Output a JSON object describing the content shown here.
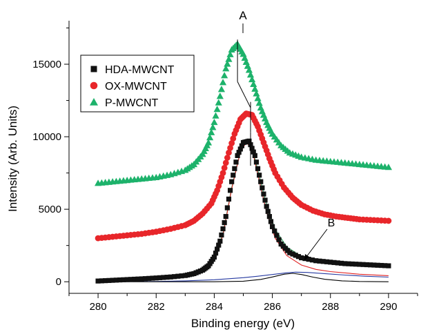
{
  "chart_data": {
    "type": "scatter",
    "xlabel": "Binding energy (eV)",
    "ylabel": "Intensity (Arb. Units)",
    "xlim": [
      279,
      291
    ],
    "ylim": [
      -800,
      18000
    ],
    "xticks": [
      280,
      282,
      284,
      286,
      288,
      290
    ],
    "yticks": [
      0,
      5000,
      10000,
      15000
    ],
    "grid": false,
    "legend_position": "top-left",
    "annotations": [
      {
        "label": "A",
        "text": "A"
      },
      {
        "label": "B",
        "text": "B"
      }
    ],
    "series": [
      {
        "name": "HDA-MWCNT",
        "marker": "square",
        "color": "#111111",
        "x": [
          280.0,
          280.5,
          281.0,
          281.5,
          282.0,
          282.5,
          283.0,
          283.3,
          283.6,
          283.8,
          284.0,
          284.2,
          284.4,
          284.6,
          284.8,
          285.0,
          285.2,
          285.4,
          285.6,
          285.8,
          286.0,
          286.3,
          286.6,
          287.0,
          287.5,
          288.0,
          288.5,
          289.0,
          289.5,
          290.0
        ],
        "y": [
          50,
          100,
          150,
          200,
          260,
          330,
          430,
          560,
          800,
          1100,
          1700,
          2800,
          4500,
          6900,
          8700,
          9600,
          9700,
          8700,
          6900,
          5200,
          3800,
          2600,
          2000,
          1650,
          1450,
          1350,
          1250,
          1200,
          1150,
          1100
        ]
      },
      {
        "name": "OX-MWCNT",
        "marker": "circle",
        "color": "#e8262a",
        "x": [
          280.0,
          280.5,
          281.0,
          281.5,
          282.0,
          282.5,
          283.0,
          283.3,
          283.6,
          283.9,
          284.1,
          284.3,
          284.5,
          284.7,
          284.9,
          285.1,
          285.3,
          285.5,
          285.7,
          285.9,
          286.1,
          286.4,
          286.7,
          287.0,
          287.4,
          287.8,
          288.2,
          288.6,
          289.0,
          289.5,
          290.0
        ],
        "y": [
          3000,
          3100,
          3200,
          3300,
          3450,
          3650,
          3900,
          4200,
          4700,
          5400,
          6300,
          7500,
          8900,
          10200,
          11200,
          11600,
          11500,
          10700,
          9600,
          8500,
          7500,
          6500,
          5800,
          5300,
          4900,
          4650,
          4500,
          4400,
          4300,
          4250,
          4200
        ]
      },
      {
        "name": "P-MWCNT",
        "marker": "triangle",
        "color": "#1db26b",
        "x": [
          280.0,
          280.5,
          281.0,
          281.5,
          282.0,
          282.5,
          283.0,
          283.3,
          283.6,
          283.8,
          284.0,
          284.2,
          284.4,
          284.6,
          284.8,
          285.0,
          285.2,
          285.4,
          285.6,
          285.8,
          286.0,
          286.3,
          286.6,
          287.0,
          287.5,
          288.0,
          288.5,
          289.0,
          289.5,
          290.0
        ],
        "y": [
          6800,
          6900,
          7000,
          7100,
          7200,
          7400,
          7700,
          8100,
          8800,
          9600,
          11000,
          12800,
          14700,
          16000,
          16400,
          15700,
          14600,
          13300,
          12000,
          11000,
          10200,
          9400,
          8900,
          8600,
          8400,
          8300,
          8200,
          8100,
          8000,
          7900
        ]
      }
    ],
    "fits": [
      {
        "color": "#2a9a55",
        "x": [
          280,
          281,
          282,
          283,
          283.5,
          284,
          284.3,
          284.6,
          284.9,
          285.1,
          285.3,
          285.5,
          285.8,
          286.1,
          286.5,
          287,
          287.5,
          288,
          289,
          290
        ],
        "y": [
          60,
          150,
          270,
          460,
          700,
          1600,
          3300,
          6500,
          9000,
          9650,
          9300,
          7700,
          5300,
          3600,
          2400,
          1750,
          1450,
          1300,
          1180,
          1100
        ]
      },
      {
        "color": "#e02020",
        "x": [
          280,
          281,
          282,
          283,
          283.5,
          284,
          284.3,
          284.6,
          284.9,
          285.1,
          285.3,
          285.5,
          285.8,
          286.1,
          286.5,
          287,
          287.5,
          288,
          289,
          290
        ],
        "y": [
          60,
          150,
          260,
          450,
          680,
          1550,
          3200,
          6400,
          8950,
          9600,
          9200,
          7400,
          4800,
          3000,
          1800,
          1150,
          850,
          700,
          520,
          420
        ]
      },
      {
        "color": "#2438a0",
        "x": [
          280,
          282,
          283,
          284,
          285,
          285.5,
          286,
          286.5,
          286.8,
          287.2,
          287.8,
          288.5,
          289.2,
          290
        ],
        "y": [
          0,
          20,
          60,
          140,
          280,
          380,
          500,
          620,
          660,
          640,
          560,
          460,
          380,
          320
        ]
      },
      {
        "color": "#000000",
        "x": [
          280,
          284,
          285,
          285.6,
          286,
          286.4,
          286.7,
          287.0,
          287.4,
          287.8,
          288.4,
          289,
          290
        ],
        "y": [
          0,
          0,
          40,
          160,
          330,
          520,
          580,
          500,
          320,
          170,
          60,
          20,
          0
        ]
      }
    ]
  }
}
